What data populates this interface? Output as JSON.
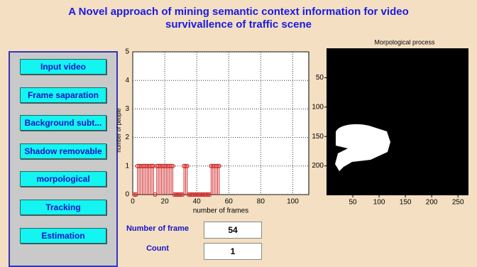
{
  "header": {
    "title_lines": [
      "A Novel approach of mining semantic context  information for video",
      "survivallence of traffic scene"
    ]
  },
  "buttons": [
    "Input video",
    "Frame saparation",
    "Background subt...",
    "Shadow removable",
    "morpological",
    "Tracking",
    "Estimation"
  ],
  "chart_data": [
    {
      "type": "stem",
      "xlabel": "number of frames",
      "ylabel": "number of people",
      "x": [
        1,
        2,
        3,
        4,
        5,
        6,
        7,
        8,
        9,
        10,
        11,
        12,
        13,
        14,
        15,
        16,
        17,
        18,
        19,
        20,
        21,
        22,
        23,
        24,
        25,
        26,
        27,
        28,
        29,
        30,
        31,
        32,
        33,
        34,
        35,
        36,
        37,
        38,
        39,
        40,
        41,
        42,
        43,
        44,
        45,
        46,
        47,
        48,
        49,
        50,
        51,
        52,
        53,
        54
      ],
      "series": [
        {
          "color": "#d02020",
          "values": [
            0,
            0,
            1,
            1,
            1,
            1,
            1,
            1,
            1,
            1,
            1,
            1,
            1,
            0,
            1,
            1,
            1,
            1,
            1,
            1,
            1,
            1,
            1,
            1,
            1,
            0,
            0,
            0,
            0,
            0,
            0,
            1,
            1,
            1,
            0,
            0,
            0,
            0,
            0,
            0,
            0,
            0,
            0,
            0,
            0,
            0,
            0,
            0,
            1,
            1,
            1,
            1,
            1,
            1
          ]
        }
      ],
      "xlim": [
        0,
        110
      ],
      "xticks": [
        0,
        20,
        40,
        60,
        80,
        100
      ],
      "ylim": [
        0,
        5
      ],
      "yticks": [
        0,
        1,
        2,
        3,
        4,
        5
      ],
      "grid": true
    },
    {
      "type": "image",
      "title": "Morpological process",
      "xlim": [
        0,
        270
      ],
      "xticks": [
        50,
        100,
        150,
        200,
        250
      ],
      "ylim": [
        0,
        250
      ],
      "yticks": [
        50,
        100,
        150,
        200
      ],
      "y_reversed": true
    }
  ],
  "fields": [
    {
      "label": "Number of frame",
      "value": 54
    },
    {
      "label": "Count",
      "value": 1
    }
  ]
}
